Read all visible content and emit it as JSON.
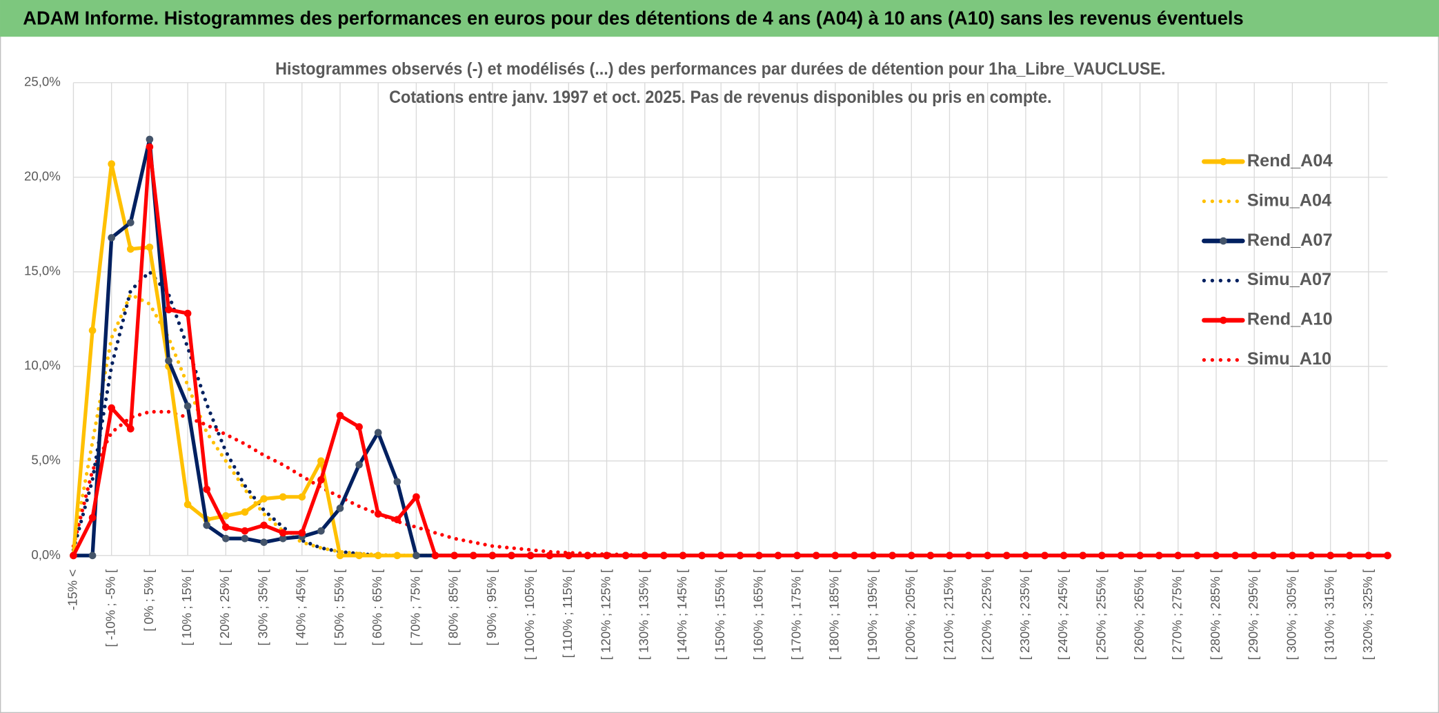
{
  "header": {
    "title": "ADAM Informe. Histogrammes des performances en euros pour des détentions de 4 ans (A04) à 10 ans (A10) sans les revenus éventuels"
  },
  "chart_data": {
    "type": "line",
    "title_lines": [
      "Histogrammes observés (-) et modélisés (...) des performances par durées de détention pour 1ha_Libre_VAUCLUSE.",
      "Cotations entre janv. 1997 et oct. 2025. Pas de revenus disponibles ou pris en compte."
    ],
    "categories": [
      "-15% <",
      null,
      "[ -10% ; -5% [",
      null,
      "[ 0% ; 5% [",
      null,
      "[ 10% ; 15% [",
      null,
      "[ 20% ; 25% [",
      null,
      "[ 30% ; 35% [",
      null,
      "[ 40% ; 45% [",
      null,
      "[ 50% ; 55% [",
      null,
      "[ 60% ; 65% [",
      null,
      "[ 70% ; 75% [",
      null,
      "[ 80% ; 85% [",
      null,
      "[ 90% ; 95% [",
      null,
      "[ 100% ; 105% [",
      null,
      "[ 110% ; 115% [",
      null,
      "[ 120% ; 125% [",
      null,
      "[ 130% ; 135% [",
      null,
      "[ 140% ; 145% [",
      null,
      "[ 150% ; 155% [",
      null,
      "[ 160% ; 165% [",
      null,
      "[ 170% ; 175% [",
      null,
      "[ 180% ; 185% [",
      null,
      "[ 190% ; 195% [",
      null,
      "[ 200% ; 205% [",
      null,
      "[ 210% ; 215% [",
      null,
      "[ 220% ; 225% [",
      null,
      "[ 230% ; 235% [",
      null,
      "[ 240% ; 245% [",
      null,
      "[ 250% ; 255% [",
      null,
      "[ 260% ; 265% [",
      null,
      "[ 270% ; 275% [",
      null,
      "[ 280% ; 285% [",
      null,
      "[ 290% ; 295% [",
      null,
      "[ 300% ; 305% [",
      null,
      "[ 310% ; 315% [",
      null,
      "[ 320% ; 325% [",
      null
    ],
    "series": [
      {
        "name": "Rend_A04",
        "color": "#ffc000",
        "style": "solid",
        "values": [
          0,
          11.9,
          20.7,
          16.2,
          16.3,
          10.0,
          2.7,
          1.9,
          2.1,
          2.3,
          3.0,
          3.1,
          3.1,
          5.0,
          0,
          0,
          0,
          0,
          0,
          0,
          0,
          0,
          0,
          0,
          0,
          0,
          0,
          0,
          0,
          0,
          0,
          0,
          0,
          0,
          0,
          0,
          0,
          0,
          0,
          0,
          0,
          0,
          0,
          0,
          0,
          0,
          0,
          0,
          0,
          0,
          0,
          0,
          0,
          0,
          0,
          0,
          0,
          0,
          0,
          0,
          0,
          0,
          0,
          0,
          0,
          0,
          0,
          0,
          0,
          0
        ]
      },
      {
        "name": "Simu_A04",
        "color": "#ffc000",
        "style": "dotted",
        "values": [
          0.5,
          6,
          11.5,
          13.8,
          13.3,
          11.5,
          9,
          6.5,
          5,
          3.5,
          2.2,
          1.3,
          0.7,
          0.4,
          0.2,
          0.1,
          0.05,
          0,
          0,
          0,
          0,
          0,
          0,
          0,
          0,
          0,
          0,
          0,
          0,
          0,
          0,
          0,
          0,
          0,
          0,
          0,
          0,
          0,
          0,
          0,
          0,
          0,
          0,
          0,
          0,
          0,
          0,
          0,
          0,
          0,
          0,
          0,
          0,
          0,
          0,
          0,
          0,
          0,
          0,
          0,
          0,
          0,
          0,
          0,
          0,
          0,
          0,
          0,
          0,
          0
        ]
      },
      {
        "name": "Rend_A07",
        "color": "#002060",
        "marker": "#44546a",
        "style": "solid",
        "values": [
          0,
          0,
          16.8,
          17.6,
          22.0,
          10.3,
          7.9,
          1.6,
          0.9,
          0.9,
          0.7,
          0.9,
          1.0,
          1.3,
          2.5,
          4.8,
          6.5,
          3.9,
          0,
          0,
          0,
          0,
          0,
          0,
          0,
          0,
          0,
          0,
          0,
          0,
          0,
          0,
          0,
          0,
          0,
          0,
          0,
          0,
          0,
          0,
          0,
          0,
          0,
          0,
          0,
          0,
          0,
          0,
          0,
          0,
          0,
          0,
          0,
          0,
          0,
          0,
          0,
          0,
          0,
          0,
          0,
          0,
          0,
          0,
          0,
          0,
          0,
          0,
          0,
          0
        ]
      },
      {
        "name": "Simu_A07",
        "color": "#002060",
        "style": "dotted",
        "values": [
          0.3,
          4,
          10,
          14,
          15,
          13.8,
          11,
          8,
          5.5,
          3.7,
          2.4,
          1.5,
          0.8,
          0.4,
          0.2,
          0.1,
          0,
          0,
          0,
          0,
          0,
          0,
          0,
          0,
          0,
          0,
          0,
          0,
          0,
          0,
          0,
          0,
          0,
          0,
          0,
          0,
          0,
          0,
          0,
          0,
          0,
          0,
          0,
          0,
          0,
          0,
          0,
          0,
          0,
          0,
          0,
          0,
          0,
          0,
          0,
          0,
          0,
          0,
          0,
          0,
          0,
          0,
          0,
          0,
          0,
          0,
          0,
          0,
          0,
          0
        ]
      },
      {
        "name": "Rend_A10",
        "color": "#ff0000",
        "style": "solid",
        "values": [
          0,
          2.0,
          7.8,
          6.7,
          21.6,
          13.0,
          12.8,
          3.5,
          1.5,
          1.3,
          1.6,
          1.2,
          1.2,
          4.0,
          7.4,
          6.8,
          2.2,
          1.9,
          3.1,
          0,
          0,
          0,
          0,
          0,
          0,
          0,
          0,
          0,
          0,
          0,
          0,
          0,
          0,
          0,
          0,
          0,
          0,
          0,
          0,
          0,
          0,
          0,
          0,
          0,
          0,
          0,
          0,
          0,
          0,
          0,
          0,
          0,
          0,
          0,
          0,
          0,
          0,
          0,
          0,
          0,
          0,
          0,
          0,
          0,
          0,
          0,
          0,
          0,
          0,
          0
        ]
      },
      {
        "name": "Simu_A10",
        "color": "#ff0000",
        "style": "dotted",
        "values": [
          0.5,
          4.5,
          6.5,
          7.3,
          7.6,
          7.6,
          7.3,
          6.9,
          6.4,
          5.9,
          5.3,
          4.8,
          4.2,
          3.6,
          3.1,
          2.6,
          2.2,
          1.8,
          1.5,
          1.2,
          0.9,
          0.7,
          0.5,
          0.4,
          0.3,
          0.2,
          0.15,
          0.1,
          0.07,
          0.05,
          0,
          0,
          0,
          0,
          0,
          0,
          0,
          0,
          0,
          0,
          0,
          0,
          0,
          0,
          0,
          0,
          0,
          0,
          0,
          0,
          0,
          0,
          0,
          0,
          0,
          0,
          0,
          0,
          0,
          0,
          0,
          0,
          0,
          0,
          0,
          0,
          0,
          0,
          0,
          0
        ]
      }
    ],
    "ylim": [
      0,
      25
    ],
    "yticks": [
      {
        "value": 0,
        "label": "0,0%"
      },
      {
        "value": 5,
        "label": "5,0%"
      },
      {
        "value": 10,
        "label": "10,0%"
      },
      {
        "value": 15,
        "label": "15,0%"
      },
      {
        "value": 20,
        "label": "20,0%"
      },
      {
        "value": 25,
        "label": "25,0%"
      }
    ],
    "grid": true,
    "legend": "right"
  }
}
